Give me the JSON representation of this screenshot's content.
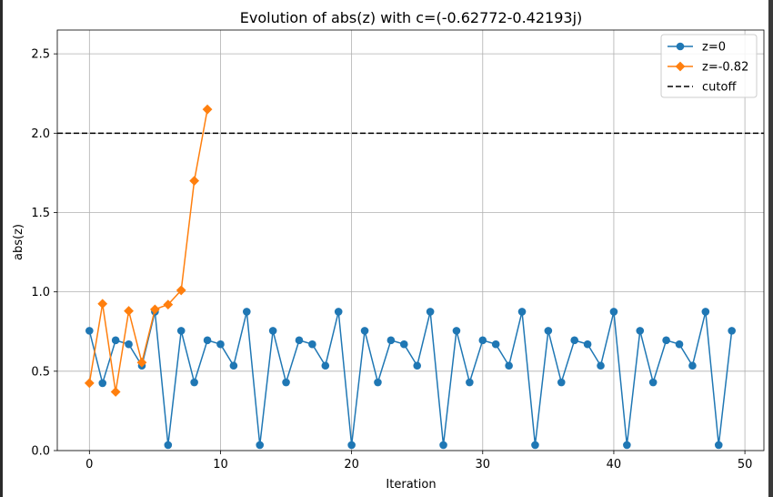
{
  "chart_data": {
    "type": "line",
    "title": "Evolution of abs(z) with c=(-0.62772-0.42193j)",
    "xlabel": "Iteration",
    "ylabel": "abs(z)",
    "xlim": [
      -2.45,
      51.45
    ],
    "ylim": [
      0,
      2.65
    ],
    "xticks": [
      0,
      10,
      20,
      30,
      40,
      50
    ],
    "yticks": [
      0.0,
      0.5,
      1.0,
      1.5,
      2.0,
      2.5
    ],
    "xtick_labels": [
      "0",
      "10",
      "20",
      "30",
      "40",
      "50"
    ],
    "ytick_labels": [
      "0.0",
      "0.5",
      "1.0",
      "1.5",
      "2.0",
      "2.5"
    ],
    "grid": true,
    "legend_position": "upper right",
    "series": [
      {
        "name": "z=0",
        "color": "#1f77b4",
        "marker": "circle",
        "x": [
          0,
          1,
          2,
          3,
          4,
          5,
          6,
          7,
          8,
          9,
          10,
          11,
          12,
          13,
          14,
          15,
          16,
          17,
          18,
          19,
          20,
          21,
          22,
          23,
          24,
          25,
          26,
          27,
          28,
          29,
          30,
          31,
          32,
          33,
          34,
          35,
          36,
          37,
          38,
          39,
          40,
          41,
          42,
          43,
          44,
          45,
          46,
          47,
          48,
          49
        ],
        "values": [
          0.755,
          0.425,
          0.695,
          0.67,
          0.535,
          0.875,
          0.035,
          0.755,
          0.43,
          0.695,
          0.67,
          0.535,
          0.875,
          0.035,
          0.755,
          0.43,
          0.695,
          0.67,
          0.535,
          0.875,
          0.035,
          0.755,
          0.43,
          0.695,
          0.67,
          0.535,
          0.875,
          0.035,
          0.755,
          0.43,
          0.695,
          0.67,
          0.535,
          0.875,
          0.035,
          0.755,
          0.43,
          0.695,
          0.67,
          0.535,
          0.875,
          0.035,
          0.755,
          0.43,
          0.695,
          0.67,
          0.535,
          0.875,
          0.035,
          0.755
        ]
      },
      {
        "name": "z=-0.82",
        "color": "#ff7f0e",
        "marker": "diamond",
        "x": [
          0,
          1,
          2,
          3,
          4,
          5,
          6,
          7,
          8,
          9
        ],
        "values": [
          0.425,
          0.925,
          0.37,
          0.88,
          0.555,
          0.89,
          0.92,
          1.01,
          1.7,
          2.15
        ]
      }
    ],
    "reference_lines": [
      {
        "name": "cutoff",
        "y": 2.0,
        "color": "#000000",
        "style": "dashed"
      }
    ]
  }
}
